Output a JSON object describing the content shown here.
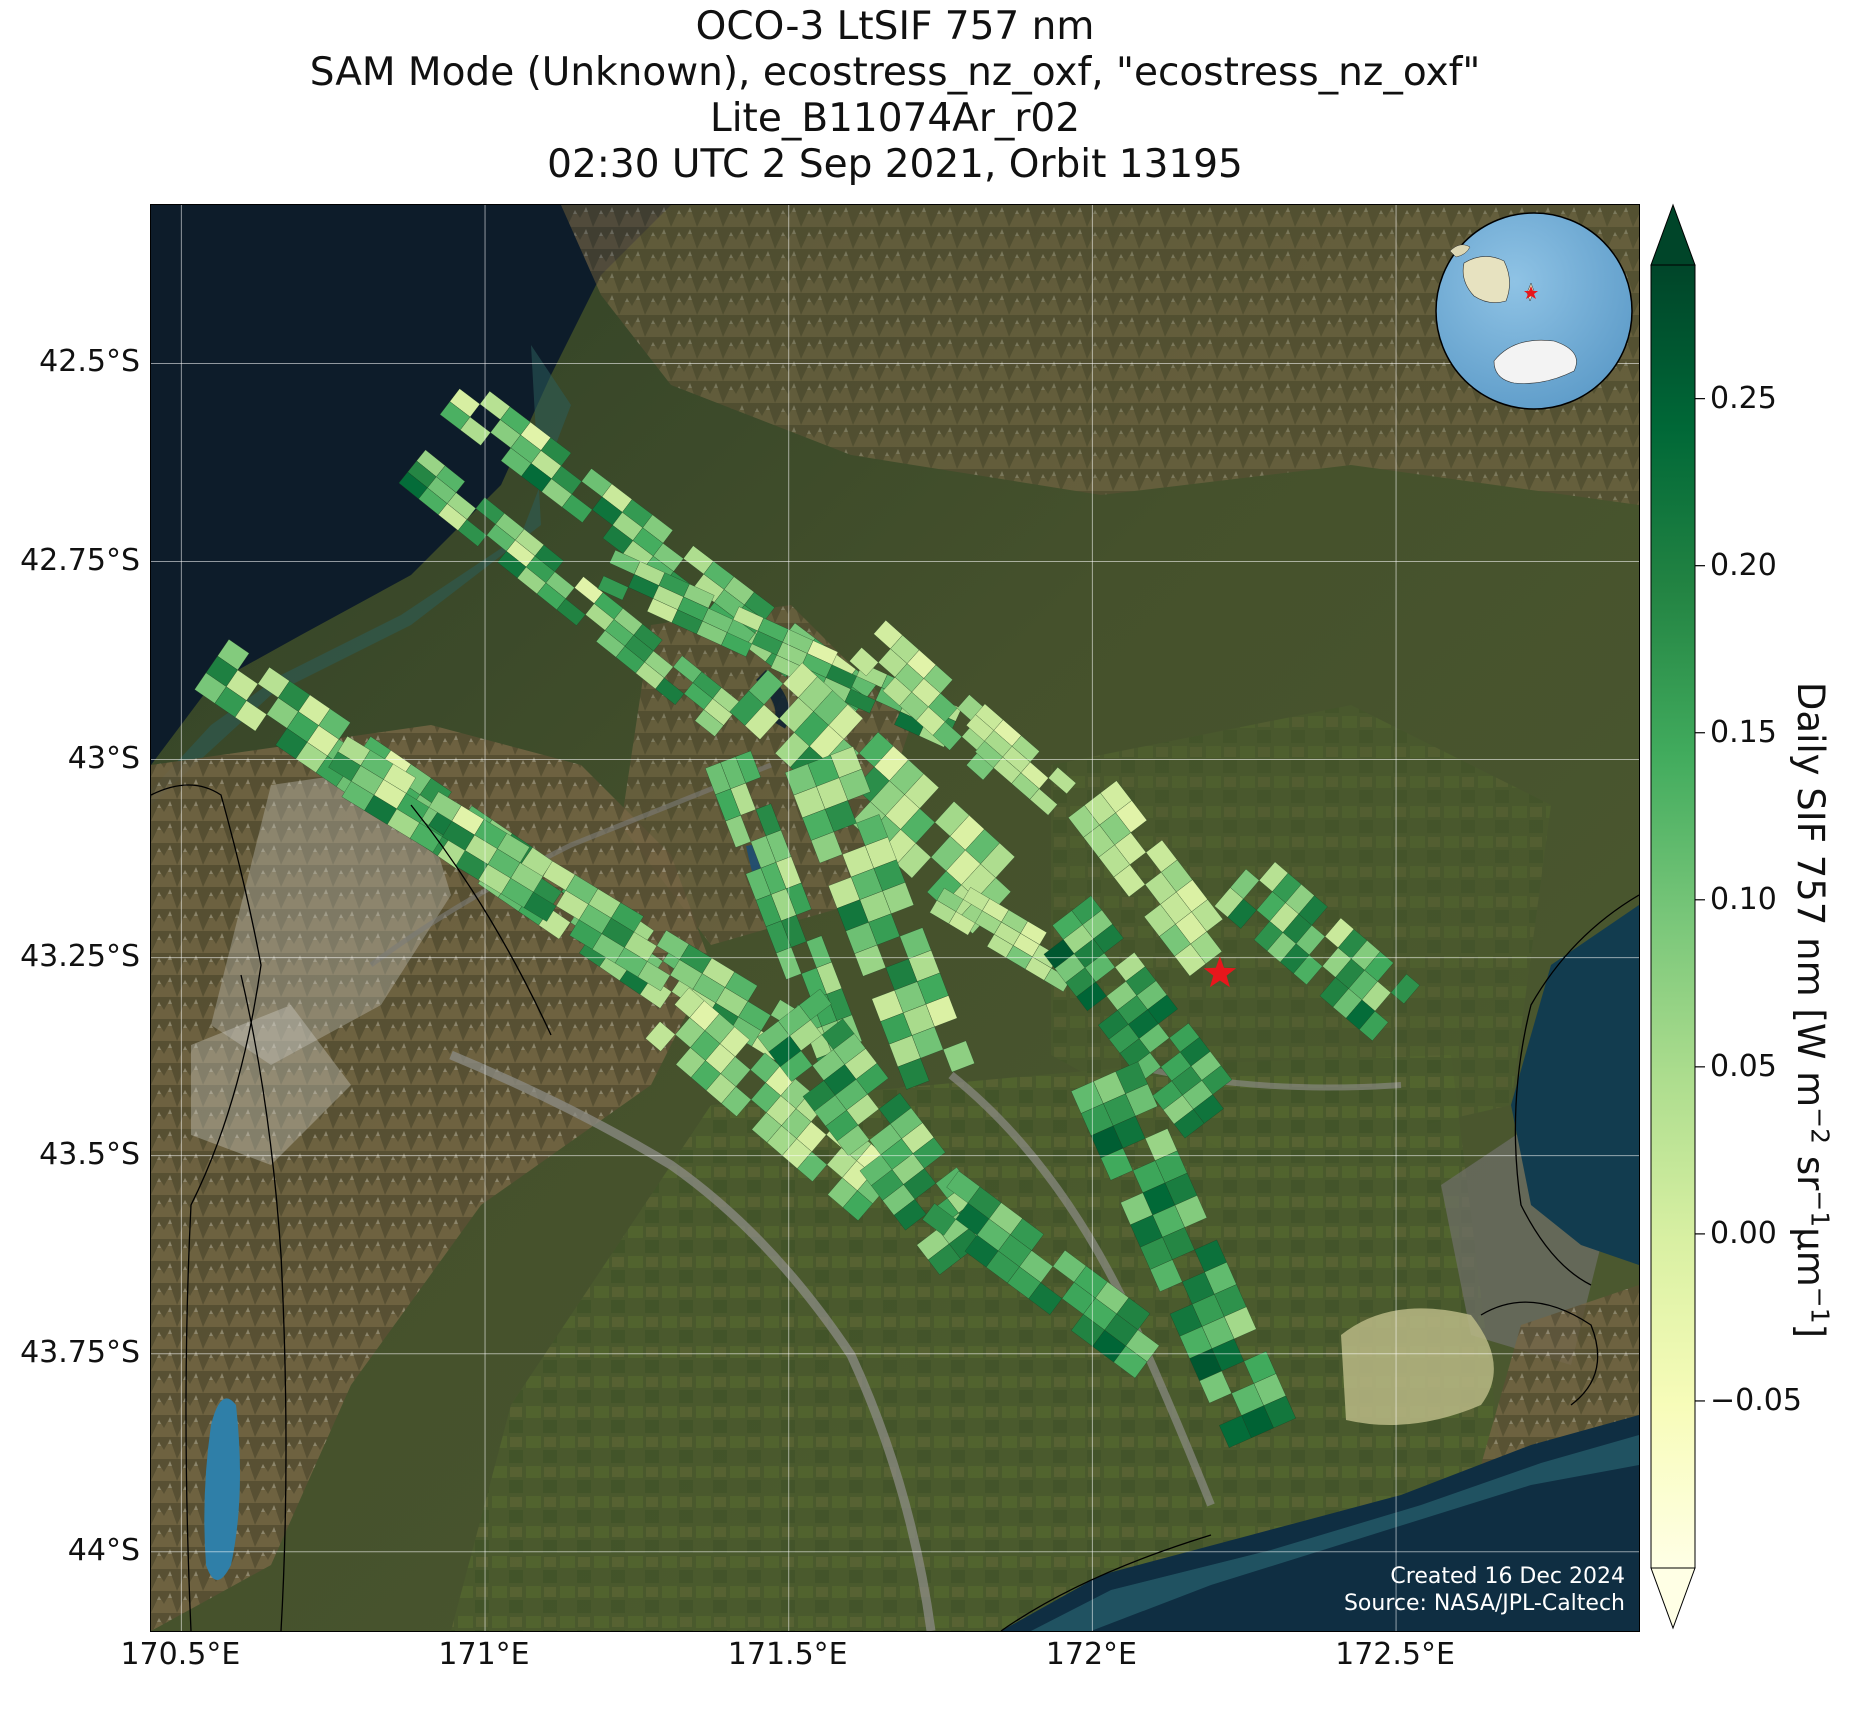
{
  "title": {
    "line1": "OCO-3 LtSIF 757 nm",
    "line2": "SAM Mode (Unknown), ecostress_nz_oxf, \"ecostress_nz_oxf\"",
    "line3": "Lite_B11074Ar_r02",
    "line4": "02:30 UTC 2 Sep 2021, Orbit 13195"
  },
  "map": {
    "lon_range": [
      170.45,
      172.9
    ],
    "lat_range": [
      -44.1,
      -42.3
    ],
    "lat_ticks": [
      {
        "value": -42.5,
        "label": "42.5°S"
      },
      {
        "value": -42.75,
        "label": "42.75°S"
      },
      {
        "value": -43.0,
        "label": "43°S"
      },
      {
        "value": -43.25,
        "label": "43.25°S"
      },
      {
        "value": -43.5,
        "label": "43.5°S"
      },
      {
        "value": -43.75,
        "label": "43.75°S"
      },
      {
        "value": -44.0,
        "label": "44°S"
      }
    ],
    "lon_ticks": [
      {
        "value": 170.5,
        "label": "170.5°E"
      },
      {
        "value": 171.0,
        "label": "171°E"
      },
      {
        "value": 171.5,
        "label": "171.5°E"
      },
      {
        "value": 172.0,
        "label": "172°E"
      },
      {
        "value": 172.5,
        "label": "172.5°E"
      }
    ],
    "target_marker": {
      "lon": 172.21,
      "lat": -43.27,
      "color": "#e8161c",
      "icon": "star-icon"
    },
    "background": "satellite-imagery",
    "inset_globe": {
      "projection": "orthographic",
      "marker_color": "#e8161c"
    }
  },
  "colorbar": {
    "label_main": "Daily SIF 757 nm [W m",
    "label_exp1": "−2",
    "label_mid1": " sr",
    "label_exp2": "−1",
    "label_mid2": "μm",
    "label_exp3": "−1",
    "label_end": "]",
    "vmin": -0.1,
    "vmax": 0.29,
    "extend": "both",
    "colormap": "YlGn",
    "colors": [
      "#ffffe5",
      "#f7fcb9",
      "#d9f0a3",
      "#addd8e",
      "#78c679",
      "#41ab5d",
      "#238443",
      "#006837",
      "#004529"
    ],
    "ticks": [
      {
        "value": -0.05,
        "label": "−0.05"
      },
      {
        "value": 0.0,
        "label": "0.00"
      },
      {
        "value": 0.05,
        "label": "0.05"
      },
      {
        "value": 0.1,
        "label": "0.10"
      },
      {
        "value": 0.15,
        "label": "0.15"
      },
      {
        "value": 0.2,
        "label": "0.20"
      },
      {
        "value": 0.25,
        "label": "0.25"
      }
    ]
  },
  "chart_data": {
    "type": "heatmap",
    "description_series": "OCO-3 SAM footprints, daily SIF 757 nm",
    "swaths": [
      {
        "lon0": 170.95,
        "lat0": -42.54,
        "lon1": 171.62,
        "lat1": -42.93,
        "width": 0.08,
        "sif": [
          0.1,
          0.05,
          0.15,
          0.0,
          0.2,
          0.08,
          0.12,
          0.03,
          0.18,
          0.1,
          0.22,
          0.06,
          0.14,
          0.09,
          0.19,
          0.04,
          0.11,
          0.16,
          0.02,
          0.13
        ]
      },
      {
        "lon0": 170.88,
        "lat0": -42.63,
        "lon1": 171.4,
        "lat1": -42.95,
        "width": 0.07,
        "sif": [
          0.08,
          0.14,
          0.03,
          0.19,
          0.1,
          0.06,
          0.22,
          0.12,
          0.0,
          0.16,
          0.09,
          0.2,
          0.05,
          0.13,
          0.18,
          0.07
        ]
      },
      {
        "lon0": 171.2,
        "lat0": -42.76,
        "lon1": 171.77,
        "lat1": -42.96,
        "width": 0.07,
        "sif": [
          0.12,
          0.06,
          0.18,
          0.09,
          0.21,
          0.04,
          0.15,
          0.1,
          0.0,
          0.17,
          0.07,
          0.13,
          0.2,
          0.05
        ]
      },
      {
        "lon0": 170.55,
        "lat0": -42.88,
        "lon1": 171.35,
        "lat1": -43.3,
        "width": 0.1,
        "sif": [
          0.1,
          0.17,
          0.05,
          0.2,
          0.02,
          0.13,
          0.08,
          0.15,
          0.0,
          0.11,
          0.19,
          0.04,
          0.14,
          0.09,
          0.21,
          0.06,
          0.12,
          0.16,
          0.03,
          0.18,
          0.07,
          0.1,
          0.13,
          0.01
        ]
      },
      {
        "lon0": 170.75,
        "lat0": -43.0,
        "lon1": 171.5,
        "lat1": -43.35,
        "width": 0.09,
        "sif": [
          0.06,
          0.13,
          0.02,
          0.18,
          0.09,
          0.0,
          0.15,
          0.1,
          0.2,
          0.04,
          0.12,
          0.07,
          0.17,
          0.03,
          0.11,
          0.19,
          0.05,
          0.14,
          0.08,
          0.1
        ]
      },
      {
        "lon0": 171.45,
        "lat0": -42.9,
        "lon1": 171.85,
        "lat1": -43.18,
        "width": 0.14,
        "sif": [
          0.0,
          0.03,
          0.08,
          0.12,
          0.02,
          0.05,
          0.15,
          0.0,
          0.1,
          0.04,
          0.18,
          0.07,
          0.01,
          0.13,
          0.06,
          0.09
        ]
      },
      {
        "lon0": 171.55,
        "lat0": -43.0,
        "lon1": 171.75,
        "lat1": -43.4,
        "width": 0.12,
        "sif": [
          0.05,
          0.1,
          0.0,
          0.14,
          0.03,
          0.18,
          0.08,
          0.02,
          0.12,
          0.06,
          0.16,
          0.01,
          0.2,
          0.09
        ]
      },
      {
        "lon0": 171.63,
        "lat0": -42.85,
        "lon1": 171.85,
        "lat1": -43.0,
        "width": 0.09,
        "sif": [
          0.02,
          0.06,
          0.0,
          0.1,
          0.04,
          0.08,
          0.01,
          0.12
        ]
      },
      {
        "lon0": 171.4,
        "lat0": -43.0,
        "lon1": 171.6,
        "lat1": -43.4,
        "width": 0.08,
        "sif": [
          0.15,
          0.08,
          0.2,
          0.11,
          0.04,
          0.17,
          0.09,
          0.13,
          0.06,
          0.19,
          0.1,
          0.14
        ]
      },
      {
        "lon0": 171.8,
        "lat0": -42.95,
        "lon1": 171.95,
        "lat1": -43.05,
        "width": 0.07,
        "sif": [
          0.03,
          0.0,
          0.07,
          0.02,
          0.05
        ]
      },
      {
        "lon0": 171.75,
        "lat0": -43.17,
        "lon1": 171.97,
        "lat1": -43.27,
        "width": 0.07,
        "sif": [
          0.0,
          0.04,
          0.02,
          0.08,
          0.01,
          0.06,
          0.03
        ]
      },
      {
        "lon0": 172.0,
        "lat0": -43.05,
        "lon1": 172.2,
        "lat1": -43.25,
        "width": 0.1,
        "sif": [
          0.02,
          0.0,
          0.06,
          0.03,
          0.08,
          0.01,
          0.05,
          0.04
        ]
      },
      {
        "lon0": 171.3,
        "lat0": -43.32,
        "lon1": 171.65,
        "lat1": -43.55,
        "width": 0.11,
        "sif": [
          0.04,
          0.0,
          0.1,
          0.02,
          0.07,
          0.13,
          0.01,
          0.09,
          0.05,
          0.12,
          0.03,
          0.08,
          0.0,
          0.06
        ]
      },
      {
        "lon0": 171.5,
        "lat0": -43.32,
        "lon1": 171.8,
        "lat1": -43.62,
        "width": 0.13,
        "sif": [
          0.15,
          0.08,
          0.2,
          0.11,
          0.05,
          0.17,
          0.09,
          0.22,
          0.12,
          0.04,
          0.18,
          0.1,
          0.14,
          0.07,
          0.2,
          0.1
        ]
      },
      {
        "lon0": 171.95,
        "lat0": -43.2,
        "lon1": 172.2,
        "lat1": -43.45,
        "width": 0.12,
        "sif": [
          0.18,
          0.1,
          0.22,
          0.14,
          0.06,
          0.2,
          0.12,
          0.25,
          0.08,
          0.17,
          0.23,
          0.11,
          0.19,
          0.15
        ]
      },
      {
        "lon0": 172.24,
        "lat0": -43.15,
        "lon1": 172.5,
        "lat1": -43.32,
        "width": 0.12,
        "sif": [
          0.12,
          0.05,
          0.18,
          0.09,
          0.22,
          0.14,
          0.03,
          0.2,
          0.1,
          0.16,
          0.07,
          0.19
        ]
      },
      {
        "lon0": 172.02,
        "lat0": -43.4,
        "lon1": 172.28,
        "lat1": -43.85,
        "width": 0.12,
        "sif": [
          0.2,
          0.12,
          0.25,
          0.08,
          0.17,
          0.22,
          0.1,
          0.15,
          0.24,
          0.13,
          0.19,
          0.07,
          0.21,
          0.16,
          0.11,
          0.23
        ]
      },
      {
        "lon0": 171.75,
        "lat0": -43.55,
        "lon1": 172.1,
        "lat1": -43.75,
        "width": 0.1,
        "sif": [
          0.14,
          0.2,
          0.09,
          0.18,
          0.23,
          0.12,
          0.16,
          0.1,
          0.21,
          0.15
        ]
      }
    ]
  },
  "credits": {
    "created": "Created 16 Dec 2024",
    "source": "Source: NASA/JPL-Caltech"
  }
}
